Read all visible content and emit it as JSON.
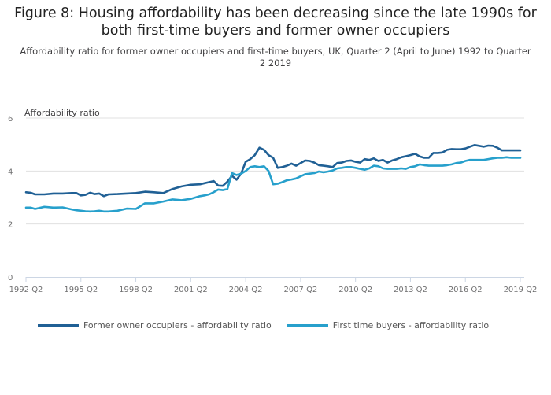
{
  "header": {
    "title": "Figure 8: Housing affordability has been decreasing since the late 1990s for both first-time buyers and former owner occupiers",
    "subtitle": "Affordability ratio for former owner occupiers and first-time buyers, UK, Quarter 2 (April to June) 1992 to Quarter 2 2019"
  },
  "legend": [
    {
      "label": "Former owner occupiers - affordability ratio",
      "color": "#206095"
    },
    {
      "label": "First time buyers - affordability ratio",
      "color": "#27a0cc"
    }
  ],
  "chart_data": {
    "type": "line",
    "title": "Figure 8: Housing affordability has been decreasing since the late 1990s for both first-time buyers and former owner occupiers",
    "ylabel": "Affordability ratio",
    "xlabel": "",
    "ylim": [
      0,
      6
    ],
    "yticks": [
      0,
      2,
      4,
      6
    ],
    "xlim": [
      1992.25,
      2019.25
    ],
    "xticks": [
      {
        "x": 1992.25,
        "label": "1992 Q2"
      },
      {
        "x": 1995.25,
        "label": "1995 Q2"
      },
      {
        "x": 1998.25,
        "label": "1998 Q2"
      },
      {
        "x": 2001.25,
        "label": "2001 Q2"
      },
      {
        "x": 2004.25,
        "label": "2004 Q2"
      },
      {
        "x": 2007.25,
        "label": "2007 Q2"
      },
      {
        "x": 2010.25,
        "label": "2010 Q2"
      },
      {
        "x": 2013.25,
        "label": "2013 Q2"
      },
      {
        "x": 2016.25,
        "label": "2016 Q2"
      },
      {
        "x": 2019.25,
        "label": "2019 Q2"
      }
    ],
    "grid": true,
    "legend_position": "bottom",
    "series": [
      {
        "name": "Former owner occupiers - affordability ratio",
        "color": "#206095",
        "x": [
          1992.25,
          1992.5,
          1992.75,
          1993.25,
          1993.75,
          1994.25,
          1994.75,
          1995.0,
          1995.25,
          1995.5,
          1995.75,
          1996.0,
          1996.25,
          1996.5,
          1996.75,
          1997.25,
          1997.75,
          1998.25,
          1998.75,
          1999.25,
          1999.75,
          2000.25,
          2000.75,
          2001.25,
          2001.75,
          2002.0,
          2002.25,
          2002.5,
          2002.75,
          2003.0,
          2003.25,
          2003.5,
          2003.75,
          2004.0,
          2004.25,
          2004.5,
          2004.75,
          2005.0,
          2005.25,
          2005.5,
          2005.75,
          2006.0,
          2006.25,
          2006.5,
          2006.75,
          2007.0,
          2007.25,
          2007.5,
          2007.75,
          2008.0,
          2008.25,
          2008.5,
          2008.75,
          2009.0,
          2009.25,
          2009.5,
          2009.75,
          2010.0,
          2010.25,
          2010.5,
          2010.75,
          2011.0,
          2011.25,
          2011.5,
          2011.75,
          2012.0,
          2012.25,
          2012.5,
          2012.75,
          2013.0,
          2013.25,
          2013.5,
          2013.75,
          2014.0,
          2014.25,
          2014.5,
          2014.75,
          2015.0,
          2015.25,
          2015.5,
          2015.75,
          2016.0,
          2016.25,
          2016.5,
          2016.75,
          2017.0,
          2017.25,
          2017.5,
          2017.75,
          2018.0,
          2018.25,
          2018.5,
          2018.75,
          2019.0,
          2019.25
        ],
        "values": [
          3.2,
          3.18,
          3.12,
          3.12,
          3.15,
          3.15,
          3.17,
          3.17,
          3.08,
          3.1,
          3.18,
          3.13,
          3.15,
          3.05,
          3.12,
          3.13,
          3.15,
          3.17,
          3.22,
          3.2,
          3.17,
          3.32,
          3.42,
          3.48,
          3.5,
          3.54,
          3.58,
          3.62,
          3.45,
          3.44,
          3.6,
          3.82,
          3.67,
          3.9,
          4.35,
          4.45,
          4.6,
          4.88,
          4.8,
          4.6,
          4.5,
          4.12,
          4.15,
          4.2,
          4.28,
          4.2,
          4.3,
          4.4,
          4.38,
          4.32,
          4.22,
          4.2,
          4.18,
          4.15,
          4.3,
          4.32,
          4.38,
          4.4,
          4.35,
          4.32,
          4.45,
          4.42,
          4.48,
          4.38,
          4.42,
          4.32,
          4.4,
          4.45,
          4.52,
          4.56,
          4.6,
          4.65,
          4.55,
          4.5,
          4.5,
          4.68,
          4.68,
          4.7,
          4.8,
          4.83,
          4.82,
          4.82,
          4.85,
          4.92,
          4.98,
          4.95,
          4.92,
          4.96,
          4.95,
          4.88,
          4.78,
          4.78,
          4.78,
          4.78,
          4.78
        ]
      },
      {
        "name": "First time buyers - affordability ratio",
        "color": "#27a0cc",
        "x": [
          1992.25,
          1992.5,
          1992.75,
          1993.25,
          1993.75,
          1994.25,
          1994.75,
          1995.0,
          1995.25,
          1995.5,
          1995.75,
          1996.0,
          1996.25,
          1996.5,
          1996.75,
          1997.25,
          1997.75,
          1998.25,
          1998.75,
          1999.25,
          1999.75,
          2000.25,
          2000.75,
          2001.25,
          2001.75,
          2002.0,
          2002.25,
          2002.5,
          2002.75,
          2003.0,
          2003.25,
          2003.5,
          2003.75,
          2004.0,
          2004.25,
          2004.5,
          2004.75,
          2005.0,
          2005.25,
          2005.5,
          2005.75,
          2006.0,
          2006.25,
          2006.5,
          2006.75,
          2007.0,
          2007.25,
          2007.5,
          2007.75,
          2008.0,
          2008.25,
          2008.5,
          2008.75,
          2009.0,
          2009.25,
          2009.5,
          2009.75,
          2010.0,
          2010.25,
          2010.5,
          2010.75,
          2011.0,
          2011.25,
          2011.5,
          2011.75,
          2012.0,
          2012.25,
          2012.5,
          2012.75,
          2013.0,
          2013.25,
          2013.5,
          2013.75,
          2014.0,
          2014.25,
          2014.5,
          2014.75,
          2015.0,
          2015.25,
          2015.5,
          2015.75,
          2016.0,
          2016.25,
          2016.5,
          2016.75,
          2017.0,
          2017.25,
          2017.5,
          2017.75,
          2018.0,
          2018.25,
          2018.5,
          2018.75,
          2019.0,
          2019.25
        ],
        "values": [
          2.62,
          2.62,
          2.57,
          2.65,
          2.62,
          2.63,
          2.55,
          2.52,
          2.5,
          2.48,
          2.47,
          2.48,
          2.5,
          2.47,
          2.47,
          2.5,
          2.58,
          2.57,
          2.78,
          2.78,
          2.85,
          2.93,
          2.9,
          2.95,
          3.05,
          3.08,
          3.12,
          3.2,
          3.3,
          3.28,
          3.32,
          3.92,
          3.85,
          3.9,
          4.0,
          4.15,
          4.18,
          4.15,
          4.18,
          4.0,
          3.5,
          3.52,
          3.58,
          3.65,
          3.68,
          3.72,
          3.8,
          3.88,
          3.9,
          3.92,
          3.98,
          3.95,
          3.98,
          4.02,
          4.1,
          4.12,
          4.15,
          4.15,
          4.12,
          4.08,
          4.05,
          4.1,
          4.2,
          4.18,
          4.1,
          4.08,
          4.08,
          4.08,
          4.1,
          4.08,
          4.15,
          4.18,
          4.25,
          4.22,
          4.2,
          4.2,
          4.2,
          4.2,
          4.22,
          4.25,
          4.3,
          4.32,
          4.38,
          4.42,
          4.42,
          4.42,
          4.42,
          4.45,
          4.48,
          4.5,
          4.5,
          4.52,
          4.5,
          4.5,
          4.5
        ]
      }
    ]
  }
}
